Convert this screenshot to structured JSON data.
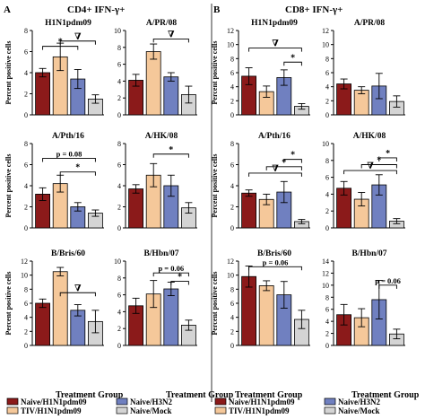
{
  "figure": {
    "section_a": {
      "letter": "A",
      "title": "CD4+ IFN-γ+"
    },
    "section_b": {
      "letter": "B",
      "title": "CD8+ IFN-γ+"
    },
    "ylabel": "Percent positive cells",
    "xlabel": "Treatment Group",
    "legend": [
      {
        "label": "Naive/H1N1pdm09",
        "color": "#8b1a1a"
      },
      {
        "label": "Naive/H3N2",
        "color": "#7080c0"
      },
      {
        "label": "TIV/H1N1pdm09",
        "color": "#f5c89a"
      },
      {
        "label": "Naive/Mock",
        "color": "#d4d4d4"
      }
    ]
  },
  "chart_data": [
    {
      "type": "bar",
      "title": "H1N1pdm09",
      "ylim": [
        0,
        8
      ],
      "yticks": [
        0,
        2,
        4,
        6,
        8
      ],
      "values": [
        4.0,
        5.5,
        3.4,
        1.5
      ],
      "errors": [
        0.4,
        1.3,
        0.9,
        0.4
      ],
      "annotations": [
        {
          "label": "*",
          "from": 0,
          "to": 2,
          "y": 6.5
        },
        {
          "label": "∇",
          "from": 1,
          "to": 3,
          "y": 7.0
        }
      ]
    },
    {
      "type": "bar",
      "title": "A/PR/08",
      "ylim": [
        0,
        10
      ],
      "yticks": [
        0,
        2,
        4,
        6,
        8,
        10
      ],
      "values": [
        4.1,
        7.5,
        4.5,
        2.4
      ],
      "errors": [
        0.7,
        0.9,
        0.5,
        1.0
      ],
      "annotations": [
        {
          "label": "∇",
          "from": 1,
          "to": 3,
          "y": 9.0
        }
      ]
    },
    {
      "type": "bar",
      "title": "H1N1pdm09",
      "ylim": [
        0,
        12
      ],
      "yticks": [
        0,
        2,
        4,
        6,
        8,
        10,
        12
      ],
      "values": [
        5.5,
        3.3,
        5.3,
        1.2
      ],
      "errors": [
        1.2,
        0.8,
        1.1,
        0.4
      ],
      "annotations": [
        {
          "label": "∇",
          "from": 0,
          "to": 3,
          "y": 9.5
        },
        {
          "label": "*",
          "from": 2,
          "to": 3,
          "y": 7.5
        }
      ]
    },
    {
      "type": "bar",
      "title": "A/PR/08",
      "ylim": [
        0,
        12
      ],
      "yticks": [
        0,
        2,
        4,
        6,
        8,
        10,
        12
      ],
      "values": [
        4.4,
        3.5,
        4.1,
        1.9
      ],
      "errors": [
        0.7,
        0.5,
        1.8,
        0.8
      ],
      "annotations": []
    },
    {
      "type": "bar",
      "title": "A/Pth/16",
      "ylim": [
        0,
        8
      ],
      "yticks": [
        0,
        2,
        4,
        6,
        8
      ],
      "values": [
        3.2,
        4.2,
        2.0,
        1.4
      ],
      "errors": [
        0.6,
        0.8,
        0.4,
        0.3
      ],
      "annotations": [
        {
          "label": "p = 0.08",
          "from": 0,
          "to": 3,
          "y": 6.6
        },
        {
          "label": "*",
          "from": 1,
          "to": 3,
          "y": 5.3
        }
      ]
    },
    {
      "type": "bar",
      "title": "A/HK/08",
      "ylim": [
        0,
        8
      ],
      "yticks": [
        0,
        2,
        4,
        6,
        8
      ],
      "values": [
        3.7,
        5.0,
        4.0,
        1.9
      ],
      "errors": [
        0.4,
        1.1,
        1.0,
        0.5
      ],
      "annotations": [
        {
          "label": "*",
          "from": 1,
          "to": 3,
          "y": 7.0
        }
      ]
    },
    {
      "type": "bar",
      "title": "A/Pth/16",
      "ylim": [
        0,
        8
      ],
      "yticks": [
        0,
        2,
        4,
        6,
        8
      ],
      "values": [
        3.3,
        2.7,
        3.4,
        0.6
      ],
      "errors": [
        0.3,
        0.5,
        1.0,
        0.2
      ],
      "annotations": [
        {
          "label": "∇",
          "from": 0,
          "to": 3,
          "y": 5.2
        },
        {
          "label": "*",
          "from": 1,
          "to": 3,
          "y": 5.8
        },
        {
          "label": "*",
          "from": 2,
          "to": 3,
          "y": 6.5
        }
      ]
    },
    {
      "type": "bar",
      "title": "A/HK/08",
      "ylim": [
        0,
        10
      ],
      "yticks": [
        0,
        2,
        4,
        6,
        8,
        10
      ],
      "values": [
        4.7,
        3.4,
        5.1,
        0.8
      ],
      "errors": [
        0.8,
        0.8,
        1.2,
        0.3
      ],
      "annotations": [
        {
          "label": "∇",
          "from": 0,
          "to": 3,
          "y": 6.8
        },
        {
          "label": "*",
          "from": 1,
          "to": 3,
          "y": 7.5
        },
        {
          "label": "*",
          "from": 2,
          "to": 3,
          "y": 8.3
        }
      ]
    },
    {
      "type": "bar",
      "title": "B/Bris/60",
      "ylim": [
        0,
        12
      ],
      "yticks": [
        0,
        2,
        4,
        6,
        8,
        10,
        12
      ],
      "values": [
        6.0,
        10.5,
        5.0,
        3.4
      ],
      "errors": [
        0.6,
        0.6,
        0.8,
        1.6
      ],
      "annotations": [
        {
          "label": "∇",
          "from": 1,
          "to": 3,
          "y": 7.5
        }
      ]
    },
    {
      "type": "bar",
      "title": "B/Hbn/07",
      "ylim": [
        0,
        10
      ],
      "yticks": [
        0,
        2,
        4,
        6,
        8,
        10
      ],
      "values": [
        4.7,
        6.1,
        6.7,
        2.4
      ],
      "errors": [
        0.9,
        1.6,
        0.8,
        0.6
      ],
      "annotations": [
        {
          "label": "p = 0.06",
          "from": 1,
          "to": 3,
          "y": 8.6
        },
        {
          "label": "*",
          "from": 2,
          "to": 3,
          "y": 7.6
        }
      ]
    },
    {
      "type": "bar",
      "title": "B/Bris/60",
      "ylim": [
        0,
        12
      ],
      "yticks": [
        0,
        2,
        4,
        6,
        8,
        10,
        12
      ],
      "values": [
        9.8,
        8.5,
        7.2,
        3.7
      ],
      "errors": [
        1.5,
        0.7,
        1.9,
        1.3
      ],
      "annotations": [
        {
          "label": "p = 0.06",
          "from": 0,
          "to": 3,
          "y": 11.2
        }
      ]
    },
    {
      "type": "bar",
      "title": "B/Hbn/07",
      "ylim": [
        0,
        14
      ],
      "yticks": [
        0,
        2,
        4,
        6,
        8,
        10,
        12,
        14
      ],
      "values": [
        5.1,
        4.6,
        7.6,
        1.9
      ],
      "errors": [
        1.7,
        1.5,
        3.2,
        0.8
      ],
      "annotations": [
        {
          "label": "p = 0.06",
          "from": 2,
          "to": 3,
          "y": 10.0
        }
      ]
    }
  ]
}
